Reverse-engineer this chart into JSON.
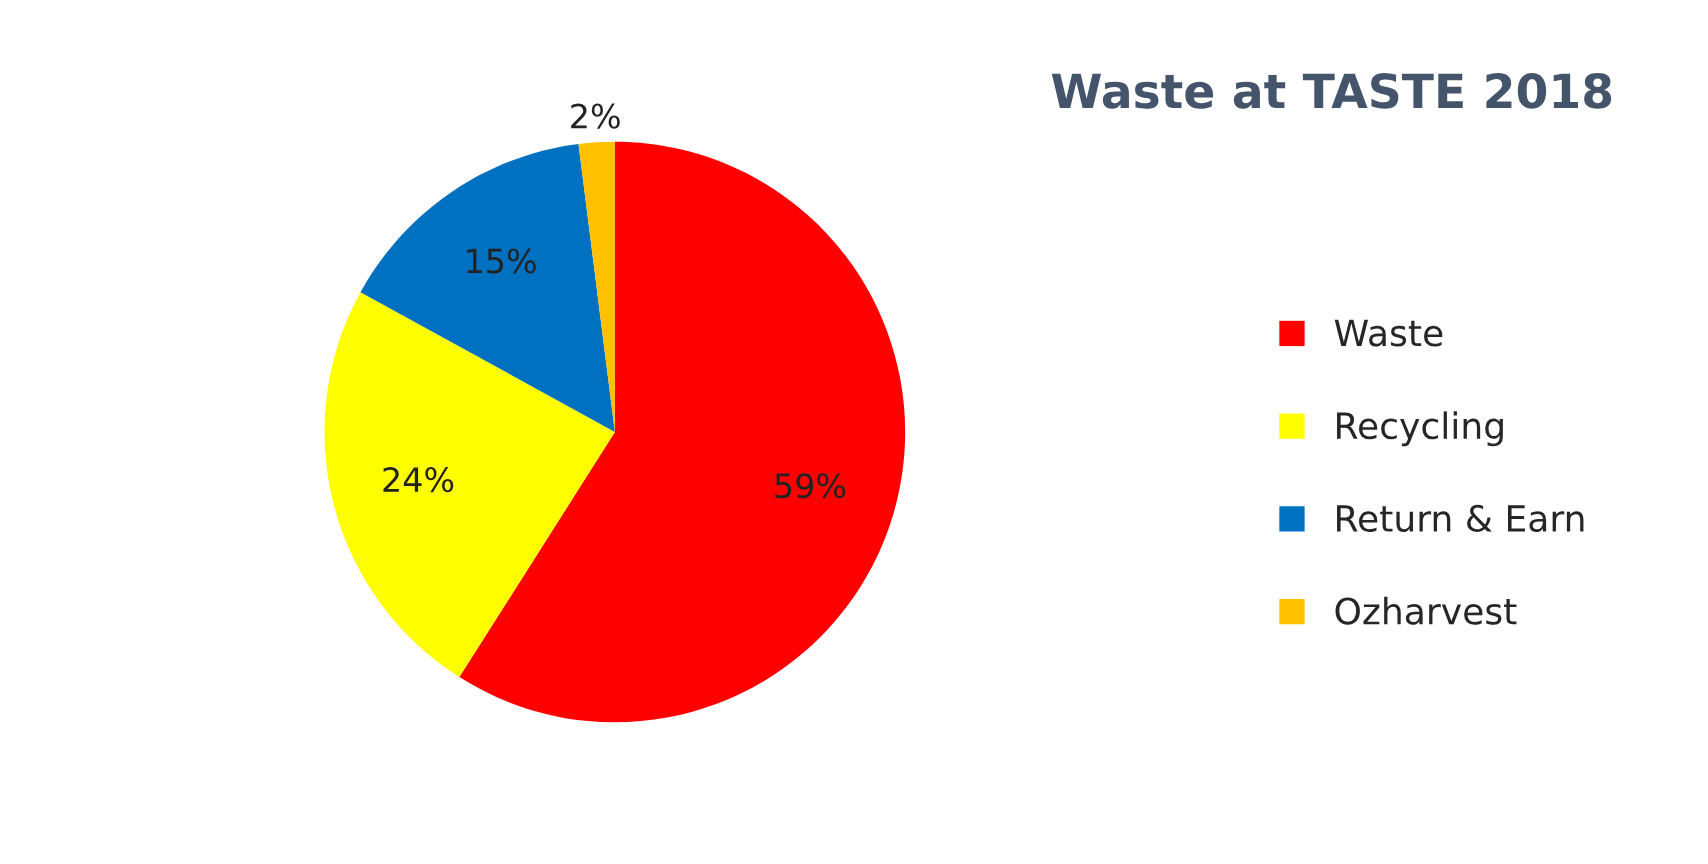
{
  "chart_data": {
    "type": "pie",
    "title": "Waste at TASTE 2018",
    "categories": [
      "Waste",
      "Recycling",
      "Return & Earn",
      "Ozharvest"
    ],
    "values": [
      59,
      24,
      15,
      2
    ],
    "colors": [
      "#ff0000",
      "#ffff00",
      "#0070c0",
      "#ffc000"
    ],
    "value_labels": [
      "59%",
      "24%",
      "15%",
      "2%"
    ],
    "legend": "right"
  }
}
